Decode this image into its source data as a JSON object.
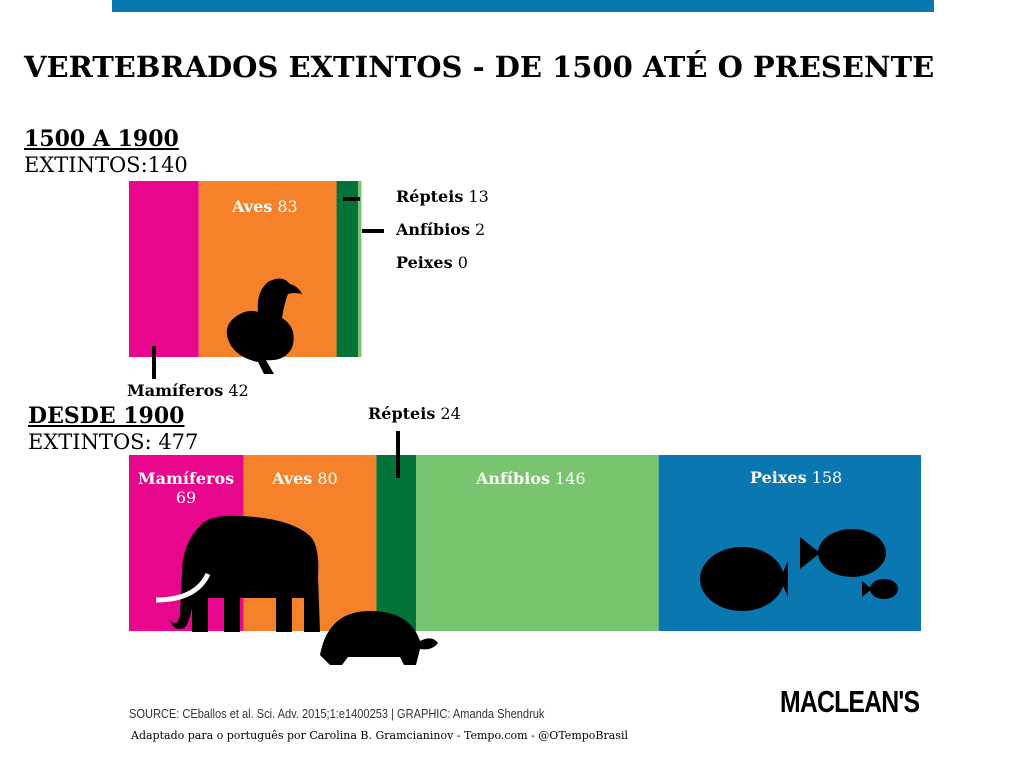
{
  "title": "VERTEBRADOS EXTINTOS - DE 1500 ATÉ O PRESENTE",
  "chart_data": {
    "type": "bar",
    "stacked": true,
    "orientation": "horizontal",
    "title": "VERTEBRADOS EXTINTOS - DE 1500 ATÉ O PRESENTE",
    "categories": [
      "Mamíferos",
      "Aves",
      "Répteis",
      "Anfíbios",
      "Peixes"
    ],
    "colors": [
      "#e8078c",
      "#f5822a",
      "#03733a",
      "#79c46e",
      "#0a77b0"
    ],
    "groups": [
      {
        "heading": "1500 A 1900",
        "total_label": "EXTINTOS:140",
        "values": [
          42,
          83,
          13,
          2,
          0
        ]
      },
      {
        "heading": "DESDE 1900",
        "total_label": "EXTINTOS: 477",
        "values": [
          69,
          80,
          24,
          146,
          158
        ]
      }
    ]
  },
  "labels": {
    "g1": [
      {
        "name": "Mamíferos",
        "value": "42"
      },
      {
        "name": "Aves",
        "value": "83"
      },
      {
        "name": "Répteis",
        "value": "13"
      },
      {
        "name": "Anfíbios",
        "value": "2"
      },
      {
        "name": "Peixes",
        "value": "0"
      }
    ],
    "g2": [
      {
        "name": "Mamíferos",
        "value": "69"
      },
      {
        "name": "Aves",
        "value": "80"
      },
      {
        "name": "Répteis",
        "value": "24"
      },
      {
        "name": "Anfíbios",
        "value": "146"
      },
      {
        "name": "Peixes",
        "value": "158"
      }
    ]
  },
  "footer": {
    "source": "SOURCE: CEballos et al. Sci. Adv. 2015;1:e1400253  |  GRAPHIC: Amanda Shendruk",
    "adapted": "Adaptado para o português por Carolina B. Gramcianinov - Tempo.com - @OTempoBrasil",
    "logo": "MACLEAN'S"
  }
}
